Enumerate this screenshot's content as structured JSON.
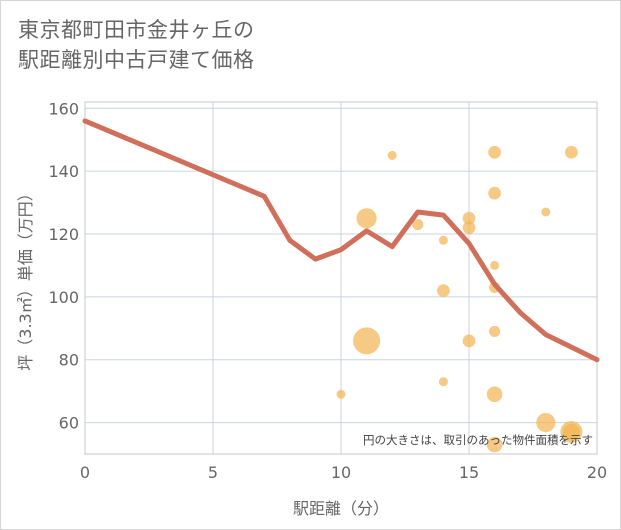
{
  "title": {
    "line1": "東京都町田市金井ヶ丘の",
    "line2": "駅距離別中古戸建て価格"
  },
  "chart_data": {
    "type": "scatter+line",
    "xlabel": "駅距離（分）",
    "ylabel": "坪（3.3㎡）単価（万円）",
    "xlim": [
      0,
      20
    ],
    "ylim": [
      50,
      162
    ],
    "xticks": [
      0,
      5,
      10,
      15,
      20
    ],
    "yticks": [
      60,
      80,
      100,
      120,
      140,
      160
    ],
    "grid": true,
    "note": "円の大きさは、取引のあった物件面積を示す",
    "colors": {
      "line": "#d0705a",
      "bubble": "#f2b450",
      "grid": "#c8d4e0",
      "axis_text": "#666666"
    },
    "series": [
      {
        "name": "trend",
        "type": "line",
        "x": [
          0,
          7,
          8,
          9,
          10,
          11,
          12,
          13,
          14,
          15,
          16,
          17,
          18,
          19,
          20
        ],
        "y": [
          156,
          132,
          118,
          112,
          115,
          121,
          116,
          127,
          126,
          117,
          104,
          95,
          88,
          84,
          80
        ]
      },
      {
        "name": "transactions",
        "type": "bubble",
        "points": [
          {
            "x": 12,
            "y": 145,
            "size": 1
          },
          {
            "x": 16,
            "y": 146,
            "size": 2
          },
          {
            "x": 19,
            "y": 146,
            "size": 2
          },
          {
            "x": 16,
            "y": 133,
            "size": 2
          },
          {
            "x": 18,
            "y": 127,
            "size": 1
          },
          {
            "x": 11,
            "y": 125,
            "size": 5
          },
          {
            "x": 13,
            "y": 123,
            "size": 1.5
          },
          {
            "x": 15,
            "y": 125,
            "size": 2
          },
          {
            "x": 15,
            "y": 122,
            "size": 2
          },
          {
            "x": 14,
            "y": 118,
            "size": 1
          },
          {
            "x": 16,
            "y": 110,
            "size": 1
          },
          {
            "x": 16,
            "y": 103,
            "size": 1.5
          },
          {
            "x": 14,
            "y": 102,
            "size": 2
          },
          {
            "x": 16,
            "y": 89,
            "size": 1.5
          },
          {
            "x": 15,
            "y": 86,
            "size": 2
          },
          {
            "x": 11,
            "y": 86,
            "size": 9
          },
          {
            "x": 14,
            "y": 73,
            "size": 1
          },
          {
            "x": 10,
            "y": 69,
            "size": 1
          },
          {
            "x": 16,
            "y": 69,
            "size": 3
          },
          {
            "x": 18,
            "y": 60,
            "size": 4.5
          },
          {
            "x": 19,
            "y": 57,
            "size": 6
          },
          {
            "x": 19,
            "y": 57,
            "size": 3.5
          },
          {
            "x": 16,
            "y": 53,
            "size": 3
          }
        ]
      }
    ]
  }
}
